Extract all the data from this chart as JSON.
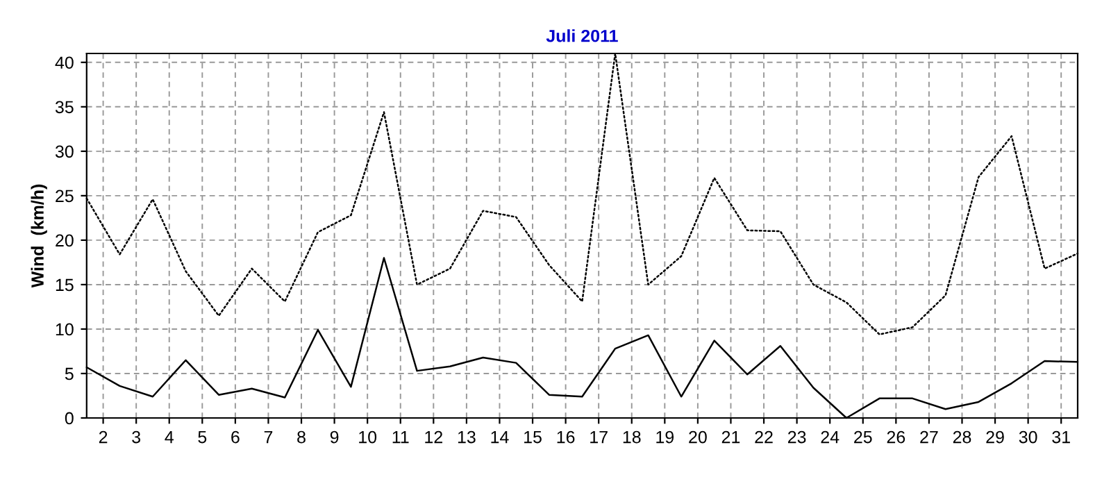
{
  "chart_data": {
    "type": "line",
    "title": "Juli 2011",
    "ylabel": "Wind  (km/h)",
    "x": [
      1.5,
      2.5,
      3.5,
      4.5,
      5.5,
      6.5,
      7.5,
      8.5,
      9.5,
      10.5,
      11.5,
      12.5,
      13.5,
      14.5,
      15.5,
      16.5,
      17.5,
      18.5,
      19.5,
      20.5,
      21.5,
      22.5,
      23.5,
      24.5,
      25.5,
      26.5,
      27.5,
      28.5,
      29.5,
      30.5,
      31.5
    ],
    "series": [
      {
        "color": "#000000",
        "line_style": "dotted",
        "values": [
          24.7,
          18.4,
          24.6,
          16.5,
          11.5,
          16.8,
          13.1,
          20.9,
          22.8,
          34.4,
          15.0,
          16.8,
          23.3,
          22.6,
          17.2,
          13.1,
          41,
          15.0,
          18.2,
          27.0,
          21.1,
          21.0,
          15.0,
          13.0,
          9.4,
          10.2,
          13.8,
          27.1,
          31.7,
          16.8,
          18.5
        ]
      },
      {
        "color": "#000000",
        "line_style": "solid",
        "values": [
          5.7,
          3.6,
          2.4,
          6.5,
          2.6,
          3.3,
          2.3,
          9.9,
          3.5,
          18.0,
          5.3,
          5.8,
          6.8,
          6.2,
          2.6,
          2.4,
          7.8,
          9.3,
          2.4,
          8.7,
          4.9,
          8.1,
          3.4,
          0,
          2.2,
          2.2,
          1.0,
          1.8,
          3.9,
          6.4,
          6.3
        ]
      }
    ],
    "xlim": [
      1.5,
      31.5
    ],
    "xticks": [
      2,
      3,
      4,
      5,
      6,
      7,
      8,
      9,
      10,
      11,
      12,
      13,
      14,
      15,
      16,
      17,
      18,
      19,
      20,
      21,
      22,
      23,
      24,
      25,
      26,
      27,
      28,
      29,
      30,
      31
    ],
    "ylim": [
      0,
      41
    ],
    "yticks": [
      0,
      5,
      10,
      15,
      20,
      25,
      30,
      35,
      40
    ],
    "grid": true,
    "legend": false
  }
}
